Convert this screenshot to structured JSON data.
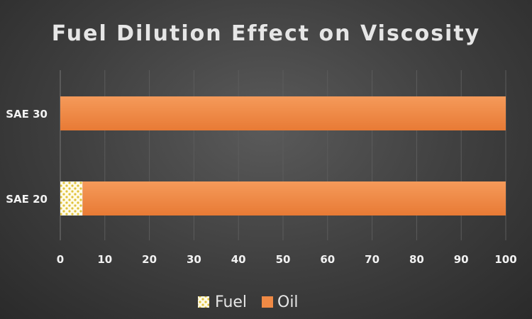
{
  "chart_data": {
    "type": "bar",
    "orientation": "horizontal",
    "stacked": true,
    "title": "Fuel Dilution Effect on Viscosity",
    "categories": [
      "SAE 30",
      "SAE 20"
    ],
    "series": [
      {
        "name": "Fuel",
        "values": [
          0,
          5
        ],
        "color": "#f5e08a",
        "pattern": "dotted"
      },
      {
        "name": "Oil",
        "values": [
          100,
          95
        ],
        "color": "#f08a45"
      }
    ],
    "xlim": [
      0,
      100
    ],
    "xticks": [
      0,
      10,
      20,
      30,
      40,
      50,
      60,
      70,
      80,
      90,
      100
    ],
    "grid": true,
    "legend_position": "bottom"
  }
}
